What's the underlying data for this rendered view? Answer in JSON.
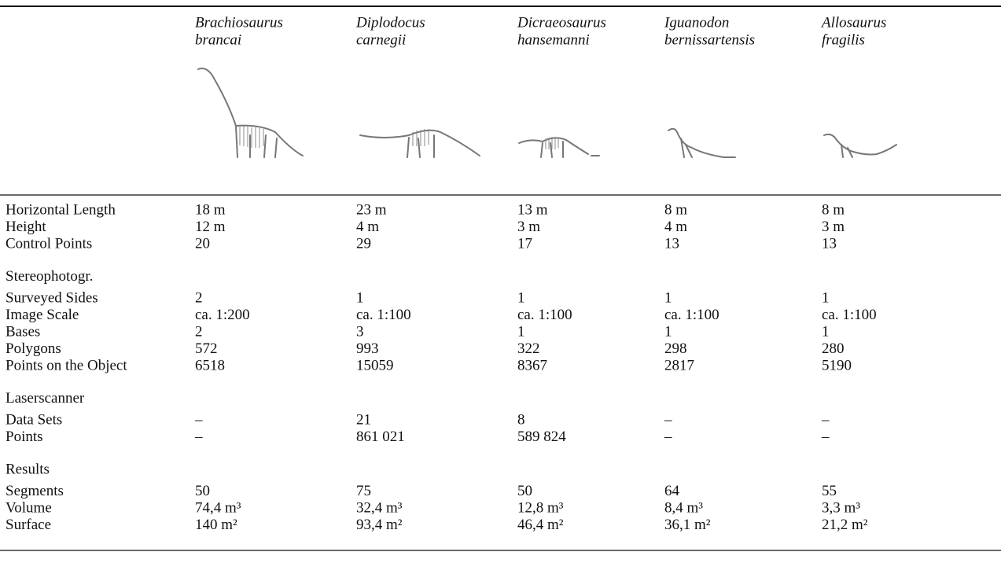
{
  "table": {
    "columns": [
      {
        "genus": "Brachiosaurus",
        "species": "brancai"
      },
      {
        "genus": "Diplodocus",
        "species": "carnegii"
      },
      {
        "genus": "Dicraeosaurus",
        "species": "hansemanni"
      },
      {
        "genus": "Iguanodon",
        "species": "bernissartensis"
      },
      {
        "genus": "Allosaurus",
        "species": "fragilis"
      }
    ],
    "sections": [
      {
        "rows": [
          {
            "label": "Horizontal Length",
            "cells": [
              "18 m",
              "23 m",
              "13 m",
              "8 m",
              "8 m"
            ]
          },
          {
            "label": "Height",
            "cells": [
              "12 m",
              "4 m",
              "3 m",
              "4 m",
              "3 m"
            ]
          },
          {
            "label": "Control Points",
            "cells": [
              "20",
              "29",
              "17",
              "13",
              "13"
            ]
          }
        ]
      },
      {
        "title": "Stereophotogr.",
        "rows": [
          {
            "label": "Surveyed Sides",
            "cells": [
              "2",
              "1",
              "1",
              "1",
              "1"
            ]
          },
          {
            "label": "Image Scale",
            "cells": [
              "ca. 1:200",
              "ca. 1:100",
              "ca. 1:100",
              "ca. 1:100",
              "ca. 1:100"
            ]
          },
          {
            "label": "Bases",
            "cells": [
              "2",
              "3",
              "1",
              "1",
              "1"
            ]
          },
          {
            "label": "Polygons",
            "cells": [
              "572",
              "993",
              "322",
              "298",
              "280"
            ]
          },
          {
            "label": "Points on the Object",
            "cells": [
              "6518",
              "15059",
              "8367",
              "2817",
              "5190"
            ]
          }
        ]
      },
      {
        "title": "Laserscanner",
        "rows": [
          {
            "label": "Data Sets",
            "cells": [
              "–",
              "21",
              "8",
              "–",
              "–"
            ]
          },
          {
            "label": "Points",
            "cells": [
              "–",
              "861 021",
              "589 824",
              "–",
              "–"
            ]
          }
        ]
      },
      {
        "title": "Results",
        "rows": [
          {
            "label": "Segments",
            "cells": [
              "50",
              "75",
              "50",
              "64",
              "55"
            ]
          },
          {
            "label": "Volume",
            "cells": [
              "74,4 m³",
              "32,4 m³",
              "12,8 m³",
              "8,4 m³",
              "3,3 m³"
            ]
          },
          {
            "label": "Surface",
            "cells": [
              "140 m²",
              "93,4 m²",
              "46,4 m²",
              "36,1 m²",
              "21,2 m²"
            ]
          }
        ]
      }
    ]
  }
}
